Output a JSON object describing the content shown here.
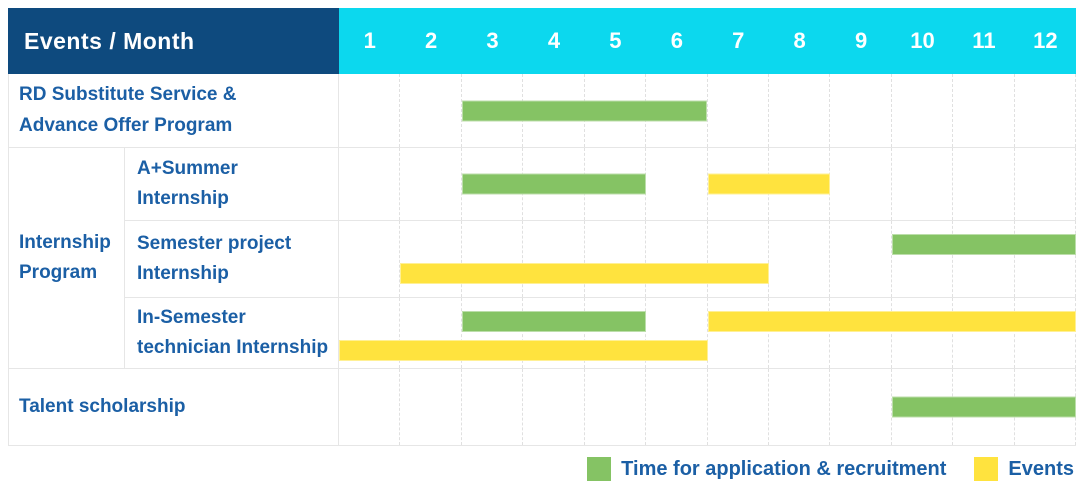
{
  "header": {
    "title": "Events / Month",
    "months": [
      "1",
      "2",
      "3",
      "4",
      "5",
      "6",
      "7",
      "8",
      "9",
      "10",
      "11",
      "12"
    ]
  },
  "legend": {
    "items": [
      {
        "label": "Time for application & recruitment",
        "color": "#85c364"
      },
      {
        "label": "Events",
        "color": "#ffe33e"
      }
    ]
  },
  "colors": {
    "navy": "#0e4a7e",
    "cyan": "#0cd8ee",
    "green": "#85c364",
    "yellow": "#ffe33e",
    "label_text": "#1b5fa5"
  },
  "chart_data": {
    "type": "gantt",
    "title": "Events / Month",
    "x": {
      "label": "Month",
      "range": [
        1,
        12
      ],
      "ticks": [
        "1",
        "2",
        "3",
        "4",
        "5",
        "6",
        "7",
        "8",
        "9",
        "10",
        "11",
        "12"
      ]
    },
    "series_legend": [
      {
        "name": "Time for application & recruitment",
        "color": "#85c364"
      },
      {
        "name": "Events",
        "color": "#ffe33e"
      }
    ],
    "rows": [
      {
        "group": "",
        "label": "RD Substitute Service &\nAdvance Offer Program",
        "bars": [
          {
            "series": "Time for application & recruitment",
            "color": "green",
            "start_month": 3,
            "end_month": 6,
            "lane": "middle"
          }
        ]
      },
      {
        "group": "Internship Program",
        "label": "A+Summer\nInternship",
        "bars": [
          {
            "series": "Time for application & recruitment",
            "color": "green",
            "start_month": 3,
            "end_month": 5,
            "lane": "middle"
          },
          {
            "series": "Events",
            "color": "yellow",
            "start_month": 7,
            "end_month": 8,
            "lane": "middle"
          }
        ]
      },
      {
        "group": "Internship Program",
        "label": "Semester project\nInternship",
        "bars": [
          {
            "series": "Time for application & recruitment",
            "color": "green",
            "start_month": 10,
            "end_month": 12,
            "lane": "top"
          },
          {
            "series": "Events",
            "color": "yellow",
            "start_month": 2,
            "end_month": 7,
            "lane": "bottom"
          }
        ]
      },
      {
        "group": "Internship Program",
        "label": "In-Semester\ntechnician Internship",
        "bars": [
          {
            "series": "Time for application & recruitment",
            "color": "green",
            "start_month": 3,
            "end_month": 5,
            "lane": "top"
          },
          {
            "series": "Events",
            "color": "yellow",
            "start_month": 7,
            "end_month": 12,
            "lane": "top"
          },
          {
            "series": "Events",
            "color": "yellow",
            "start_month": 1,
            "end_month": 6,
            "lane": "bottom"
          }
        ]
      },
      {
        "group": "",
        "label": "Talent scholarship",
        "bars": [
          {
            "series": "Time for application & recruitment",
            "color": "green",
            "start_month": 10,
            "end_month": 12,
            "lane": "middle"
          }
        ]
      }
    ]
  }
}
